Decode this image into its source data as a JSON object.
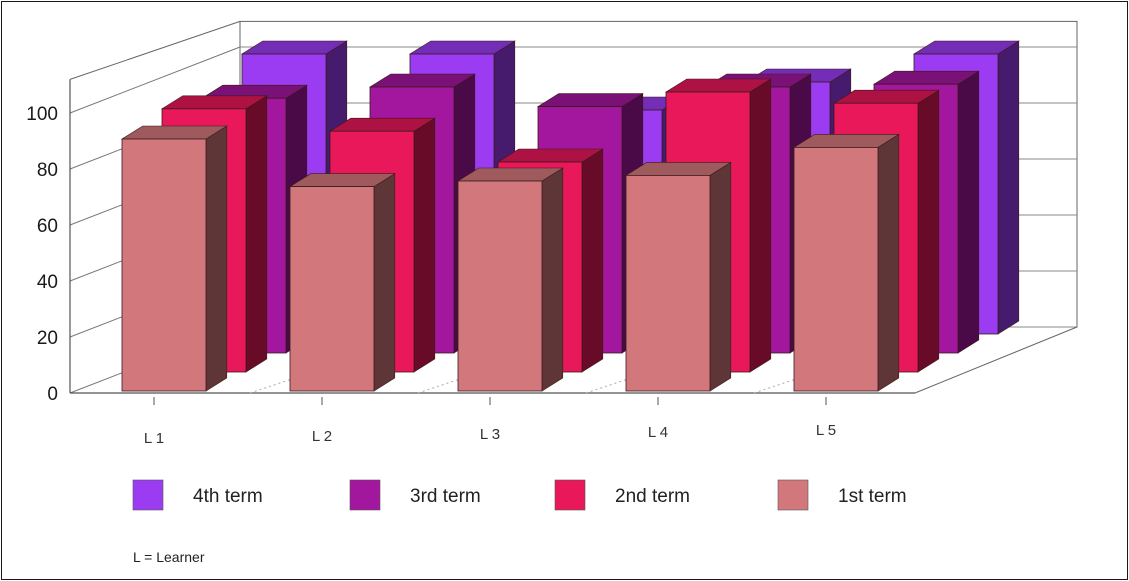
{
  "chart_data": {
    "type": "bar",
    "style": "3d-clustered-depth",
    "categories": [
      "L 1",
      "L 2",
      "L 3",
      "L 4",
      "L 5"
    ],
    "series": [
      {
        "name": "4th term",
        "color": "#9b3cf2",
        "values": [
          100,
          100,
          80,
          90,
          100
        ]
      },
      {
        "name": "3rd term",
        "color": "#a3169e",
        "values": [
          91,
          95,
          88,
          95,
          96
        ]
      },
      {
        "name": "2nd term",
        "color": "#e8185a",
        "values": [
          94,
          86,
          75,
          100,
          96
        ]
      },
      {
        "name": "1st term",
        "color": "#d2787c",
        "values": [
          90,
          73,
          75,
          77,
          87
        ]
      }
    ],
    "ylim": [
      0,
      100
    ],
    "yticks": [
      0,
      20,
      40,
      60,
      80,
      100
    ],
    "ytick_labels": [
      "0",
      "20",
      "40",
      "60",
      "80",
      "100"
    ],
    "grid": true,
    "legend_position": "bottom",
    "title": "",
    "xlabel": "",
    "ylabel": ""
  },
  "footnote": "L = Learner"
}
